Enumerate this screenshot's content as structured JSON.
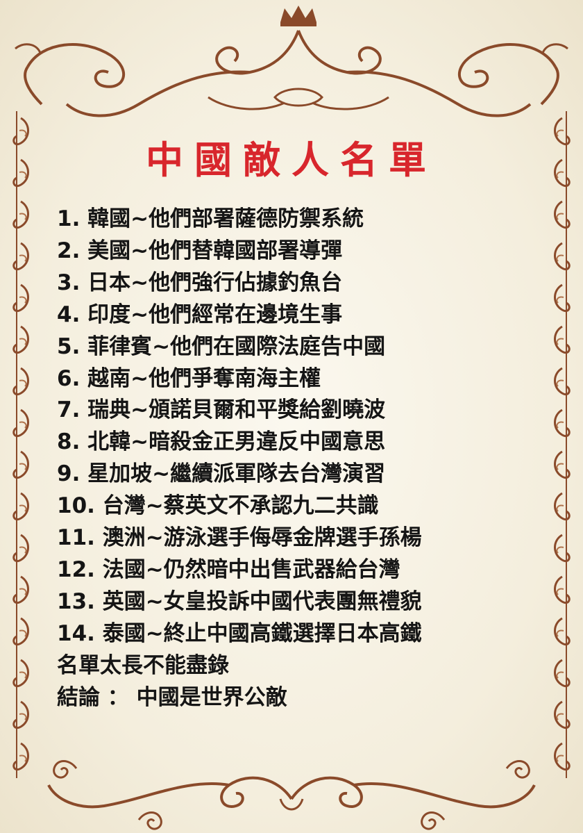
{
  "title": "中國敵人名單",
  "items": [
    "1. 韓國~他們部署薩德防禦系統",
    "2. 美國~他們替韓國部署導彈",
    "3. 日本~他們強行佔據釣魚台",
    "4. 印度~他們經常在邊境生事",
    "5. 菲律賓~他們在國際法庭告中國",
    "6. 越南~他們爭奪南海主權",
    "7. 瑞典~頒諾貝爾和平獎給劉曉波",
    "8. 北韓~暗殺金正男違反中國意思",
    "9. 星加坡~繼續派軍隊去台灣演習",
    "10. 台灣~蔡英文不承認九二共識",
    "11. 澳洲~游泳選手侮辱金牌選手孫楊",
    "12. 法國~仍然暗中出售武器給台灣",
    "13. 英國~女皇投訴中國代表團無禮貌",
    "14. 泰國~終止中國高鐵選擇日本高鐵"
  ],
  "note": "名單太長不能盡錄",
  "conclusion": "結論 ： 中國是世界公敵",
  "colors": {
    "title": "#d8262c",
    "ornament": "#8a4a2a",
    "background": "#f7f2e6"
  },
  "icons": [
    "crown-icon",
    "flourish-ornament"
  ]
}
